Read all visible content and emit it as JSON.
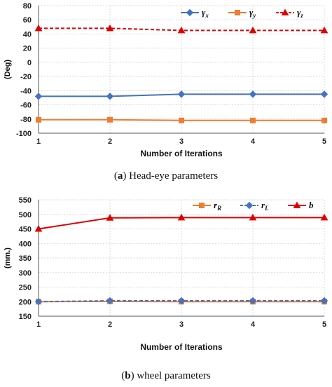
{
  "chart_data": [
    {
      "type": "line",
      "caption_letter": "a",
      "caption_text": "Head-eye parameters",
      "xlabel": "Number of Iterations",
      "ylabel": "(Deg)",
      "x": [
        1,
        2,
        3,
        4,
        5
      ],
      "xlim": [
        1,
        5
      ],
      "ylim": [
        -100,
        80
      ],
      "yticks": [
        80,
        60,
        40,
        20,
        0,
        -20,
        -40,
        -60,
        -80,
        -100
      ],
      "grid": true,
      "legend_position": "top-right",
      "series": [
        {
          "name": "γx",
          "legend_main": "γ",
          "legend_sub": "x",
          "values": [
            -48,
            -48,
            -45,
            -45,
            -45
          ],
          "color": "#4472C4",
          "marker": "diamond",
          "dash": "solid"
        },
        {
          "name": "γy",
          "legend_main": "γ",
          "legend_sub": "y",
          "values": [
            -81,
            -81,
            -82,
            -82,
            -82
          ],
          "color": "#ED7D31",
          "marker": "square",
          "dash": "solid"
        },
        {
          "name": "γz",
          "legend_main": "γ",
          "legend_sub": "z",
          "values": [
            48,
            48,
            45,
            45,
            45
          ],
          "color": "#E00000",
          "marker": "triangle",
          "dash": "dashed"
        }
      ]
    },
    {
      "type": "line",
      "caption_letter": "b",
      "caption_text": "wheel parameters",
      "xlabel": "Number of Iterations",
      "ylabel": "(mm.)",
      "x": [
        1,
        2,
        3,
        4,
        5
      ],
      "xlim": [
        1,
        5
      ],
      "ylim": [
        150,
        550
      ],
      "yticks": [
        550,
        500,
        450,
        400,
        350,
        300,
        250,
        200,
        150
      ],
      "grid": true,
      "legend_position": "top-right",
      "series": [
        {
          "name": "rR",
          "legend_main": "r",
          "legend_sub": "R",
          "values": [
            200,
            201,
            200,
            200,
            200
          ],
          "color": "#ED7D31",
          "marker": "square",
          "dash": "solid"
        },
        {
          "name": "rL",
          "legend_main": "r",
          "legend_sub": "L",
          "values": [
            200,
            203,
            203,
            203,
            203
          ],
          "color": "#4472C4",
          "marker": "diamond",
          "dash": "dashed"
        },
        {
          "name": "b",
          "legend_main": "b",
          "legend_sub": "",
          "values": [
            450,
            488,
            489,
            489,
            489
          ],
          "color": "#E00000",
          "marker": "triangle",
          "dash": "solid"
        }
      ]
    }
  ]
}
